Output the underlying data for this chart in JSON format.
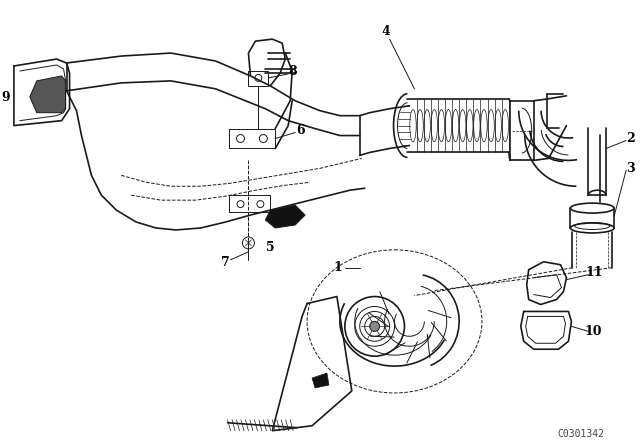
{
  "background_color": "#ffffff",
  "line_color": "#1a1a1a",
  "watermark": "C0301342",
  "fig_width": 6.4,
  "fig_height": 4.48,
  "dpi": 100,
  "label_fontsize": 9,
  "label_color": "#000000"
}
